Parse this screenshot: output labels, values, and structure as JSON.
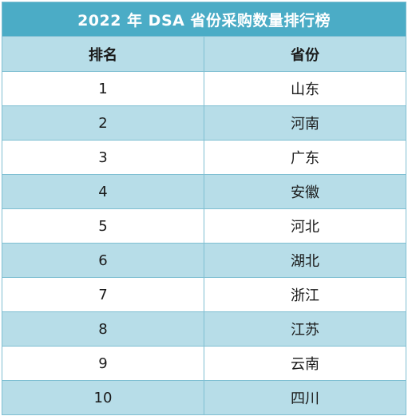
{
  "title": "2022 年 DSA 省份采购数量排行榜",
  "columns": {
    "rank": "排名",
    "province": "省份"
  },
  "rows": [
    {
      "rank": "1",
      "province": "山东"
    },
    {
      "rank": "2",
      "province": "河南"
    },
    {
      "rank": "3",
      "province": "广东"
    },
    {
      "rank": "4",
      "province": "安徽"
    },
    {
      "rank": "5",
      "province": "河北"
    },
    {
      "rank": "6",
      "province": "湖北"
    },
    {
      "rank": "7",
      "province": "浙江"
    },
    {
      "rank": "8",
      "province": "江苏"
    },
    {
      "rank": "9",
      "province": "云南"
    },
    {
      "rank": "10",
      "province": "四川"
    }
  ],
  "colors": {
    "title_bg": "#4bacc6",
    "band_bg": "#b7dde8",
    "border": "#7fbfd2"
  }
}
